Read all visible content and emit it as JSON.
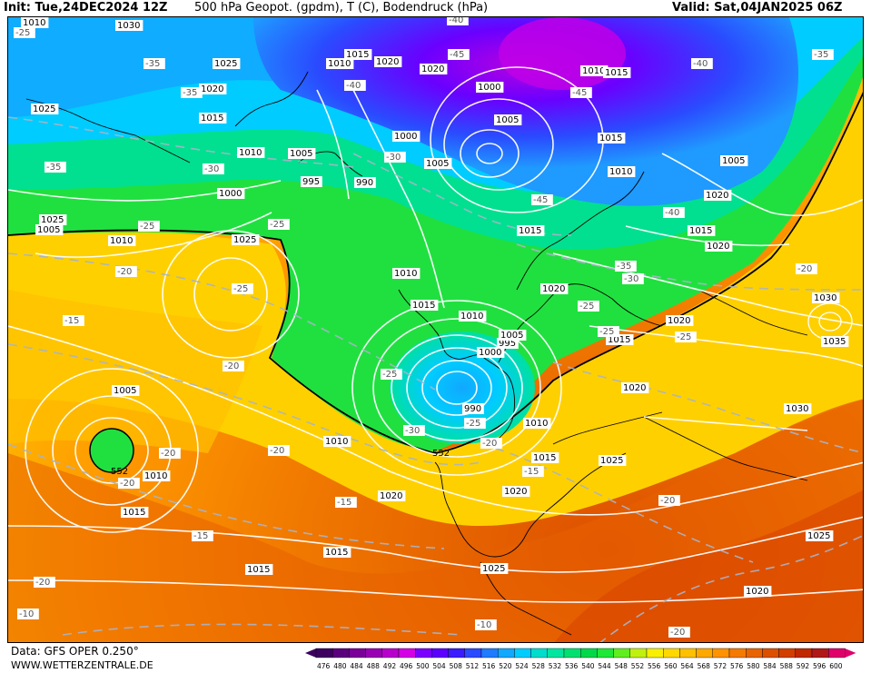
{
  "header": {
    "init": "Init: Tue,24DEC2024 12Z",
    "title": "500 hPa Geopot. (gpdm), T (C), Bodendruck (hPa)",
    "valid": "Valid: Sat,04JAN2025 06Z"
  },
  "footer": {
    "data_source": "Data: GFS OPER 0.250°",
    "website": "WWW.WETTERZENTRALE.DE"
  },
  "colorbar": {
    "ticks": [
      "476",
      "480",
      "484",
      "488",
      "492",
      "496",
      "500",
      "504",
      "508",
      "512",
      "516",
      "520",
      "524",
      "528",
      "532",
      "536",
      "540",
      "544",
      "548",
      "552",
      "556",
      "560",
      "564",
      "568",
      "572",
      "576",
      "580",
      "584",
      "588",
      "592",
      "596",
      "600"
    ],
    "colors": [
      "#3d0060",
      "#5a007d",
      "#7a0099",
      "#9900b3",
      "#b800cc",
      "#d400e6",
      "#7a00ff",
      "#5b00ff",
      "#3a1cff",
      "#2a4bff",
      "#1f7bff",
      "#11a8ff",
      "#00ccff",
      "#00ddcc",
      "#00e6a0",
      "#00e070",
      "#00d84a",
      "#1ee836",
      "#60ee20",
      "#c0f010",
      "#f8f000",
      "#ffd800",
      "#ffc000",
      "#ffa800",
      "#ff9200",
      "#f57a00",
      "#e86400",
      "#dd5000",
      "#d23e00",
      "#c02800",
      "#b01818",
      "#e0006c"
    ]
  },
  "isobars": [
    "1030",
    "1025",
    "1020",
    "1015",
    "1010",
    "1005",
    "1000",
    "995",
    "990",
    "1035"
  ],
  "temps": [
    "-45",
    "-40",
    "-35",
    "-30",
    "-25",
    "-20",
    "-15",
    "-10"
  ],
  "geopot_labels": [
    "552",
    "552"
  ],
  "pressure_labels": [
    {
      "t": "1030"
    },
    {
      "t": "1025"
    },
    {
      "t": "1020"
    },
    {
      "t": "1015"
    },
    {
      "t": "1010"
    },
    {
      "t": "1020"
    },
    {
      "t": "1020"
    },
    {
      "t": "1015"
    },
    {
      "t": "1010"
    },
    {
      "t": "1005"
    },
    {
      "t": "1000"
    },
    {
      "t": "995"
    },
    {
      "t": "990"
    },
    {
      "t": "1000"
    },
    {
      "t": "1005"
    },
    {
      "t": "1000"
    },
    {
      "t": "1005"
    },
    {
      "t": "1010"
    },
    {
      "t": "1015"
    },
    {
      "t": "1015"
    },
    {
      "t": "1010"
    },
    {
      "t": "1005"
    },
    {
      "t": "1020"
    },
    {
      "t": "1015"
    },
    {
      "t": "1020"
    },
    {
      "t": "1015"
    },
    {
      "t": "1010"
    },
    {
      "t": "1010"
    },
    {
      "t": "1025"
    },
    {
      "t": "1015"
    },
    {
      "t": "1010"
    },
    {
      "t": "1005"
    },
    {
      "t": "1000"
    },
    {
      "t": "995"
    },
    {
      "t": "990"
    },
    {
      "t": "1005"
    },
    {
      "t": "1010"
    },
    {
      "t": "1015"
    },
    {
      "t": "1020"
    },
    {
      "t": "1020"
    },
    {
      "t": "1015"
    },
    {
      "t": "1020"
    },
    {
      "t": "1030"
    },
    {
      "t": "1035"
    },
    {
      "t": "1030"
    },
    {
      "t": "1025"
    },
    {
      "t": "1020"
    },
    {
      "t": "1015"
    },
    {
      "t": "1025"
    },
    {
      "t": "1010"
    },
    {
      "t": "1010"
    },
    {
      "t": "1005"
    },
    {
      "t": "1025"
    },
    {
      "t": "1020"
    },
    {
      "t": "1015"
    },
    {
      "t": "1015"
    },
    {
      "t": "1025"
    },
    {
      "t": "1020"
    },
    {
      "t": "1015"
    },
    {
      "t": "1025"
    },
    {
      "t": "1010"
    }
  ],
  "temp_labels": [
    {
      "t": "-40"
    },
    {
      "t": "-45"
    },
    {
      "t": "-45"
    },
    {
      "t": "-40"
    },
    {
      "t": "-25"
    },
    {
      "t": "-35"
    },
    {
      "t": "-40"
    },
    {
      "t": "-35"
    },
    {
      "t": "-35"
    },
    {
      "t": "-30"
    },
    {
      "t": "-30"
    },
    {
      "t": "-35"
    },
    {
      "t": "-25"
    },
    {
      "t": "-45"
    },
    {
      "t": "-40"
    },
    {
      "t": "-35"
    },
    {
      "t": "-30"
    },
    {
      "t": "-25"
    },
    {
      "t": "-25"
    },
    {
      "t": "-20"
    },
    {
      "t": "-25"
    },
    {
      "t": "-25"
    },
    {
      "t": "-20"
    },
    {
      "t": "-15"
    },
    {
      "t": "-25"
    },
    {
      "t": "-30"
    },
    {
      "t": "-25"
    },
    {
      "t": "-25"
    },
    {
      "t": "-20"
    },
    {
      "t": "-20"
    },
    {
      "t": "-15"
    },
    {
      "t": "-20"
    },
    {
      "t": "-20"
    },
    {
      "t": "-20"
    },
    {
      "t": "-15"
    },
    {
      "t": "-15"
    },
    {
      "t": "-20"
    },
    {
      "t": "-10"
    },
    {
      "t": "-20"
    },
    {
      "t": "-20"
    },
    {
      "t": "-10"
    }
  ]
}
